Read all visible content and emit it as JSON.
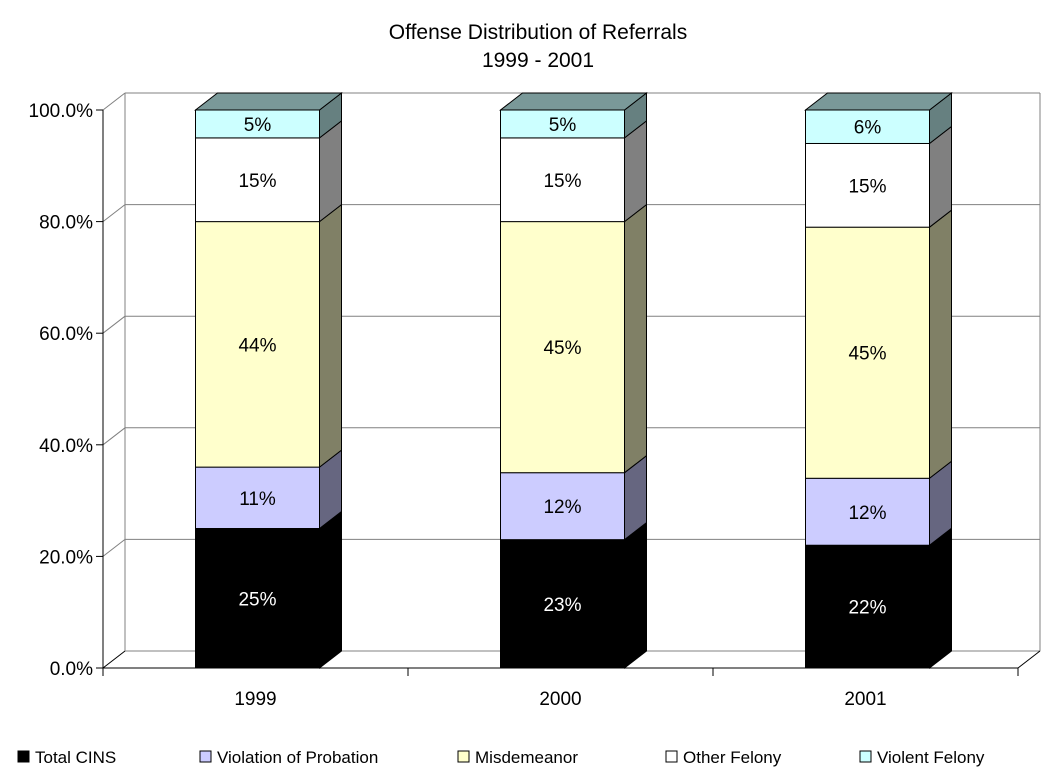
{
  "chart_data": {
    "type": "bar",
    "stacked": true,
    "title_lines": [
      "Offense Distribution of Referrals",
      "1999 - 2001"
    ],
    "categories": [
      "1999",
      "2000",
      "2001"
    ],
    "ylim": [
      0,
      100
    ],
    "yticks": [
      "0.0%",
      "20.0%",
      "40.0%",
      "60.0%",
      "80.0%",
      "100.0%"
    ],
    "grid": true,
    "legend_position": "bottom",
    "series": [
      {
        "name": "Total CINS",
        "values": [
          25,
          23,
          22
        ],
        "labels": [
          "25%",
          "23%",
          "22%"
        ],
        "color": "#000000",
        "label_color": "#ffffff"
      },
      {
        "name": "Violation of Probation",
        "values": [
          11,
          12,
          12
        ],
        "labels": [
          "11%",
          "12%",
          "12%"
        ],
        "color": "#ccccff",
        "label_color": "#000000"
      },
      {
        "name": "Misdemeanor",
        "values": [
          44,
          45,
          45
        ],
        "labels": [
          "44%",
          "45%",
          "45%"
        ],
        "color": "#ffffcc",
        "label_color": "#000000"
      },
      {
        "name": "Other Felony",
        "values": [
          15,
          15,
          15
        ],
        "labels": [
          "15%",
          "15%",
          "15%"
        ],
        "color": "#ffffff",
        "label_color": "#000000"
      },
      {
        "name": "Violent Felony",
        "values": [
          5,
          5,
          6
        ],
        "labels": [
          "5%",
          "5%",
          "6%"
        ],
        "color": "#ccffff",
        "label_color": "#000000"
      }
    ]
  }
}
